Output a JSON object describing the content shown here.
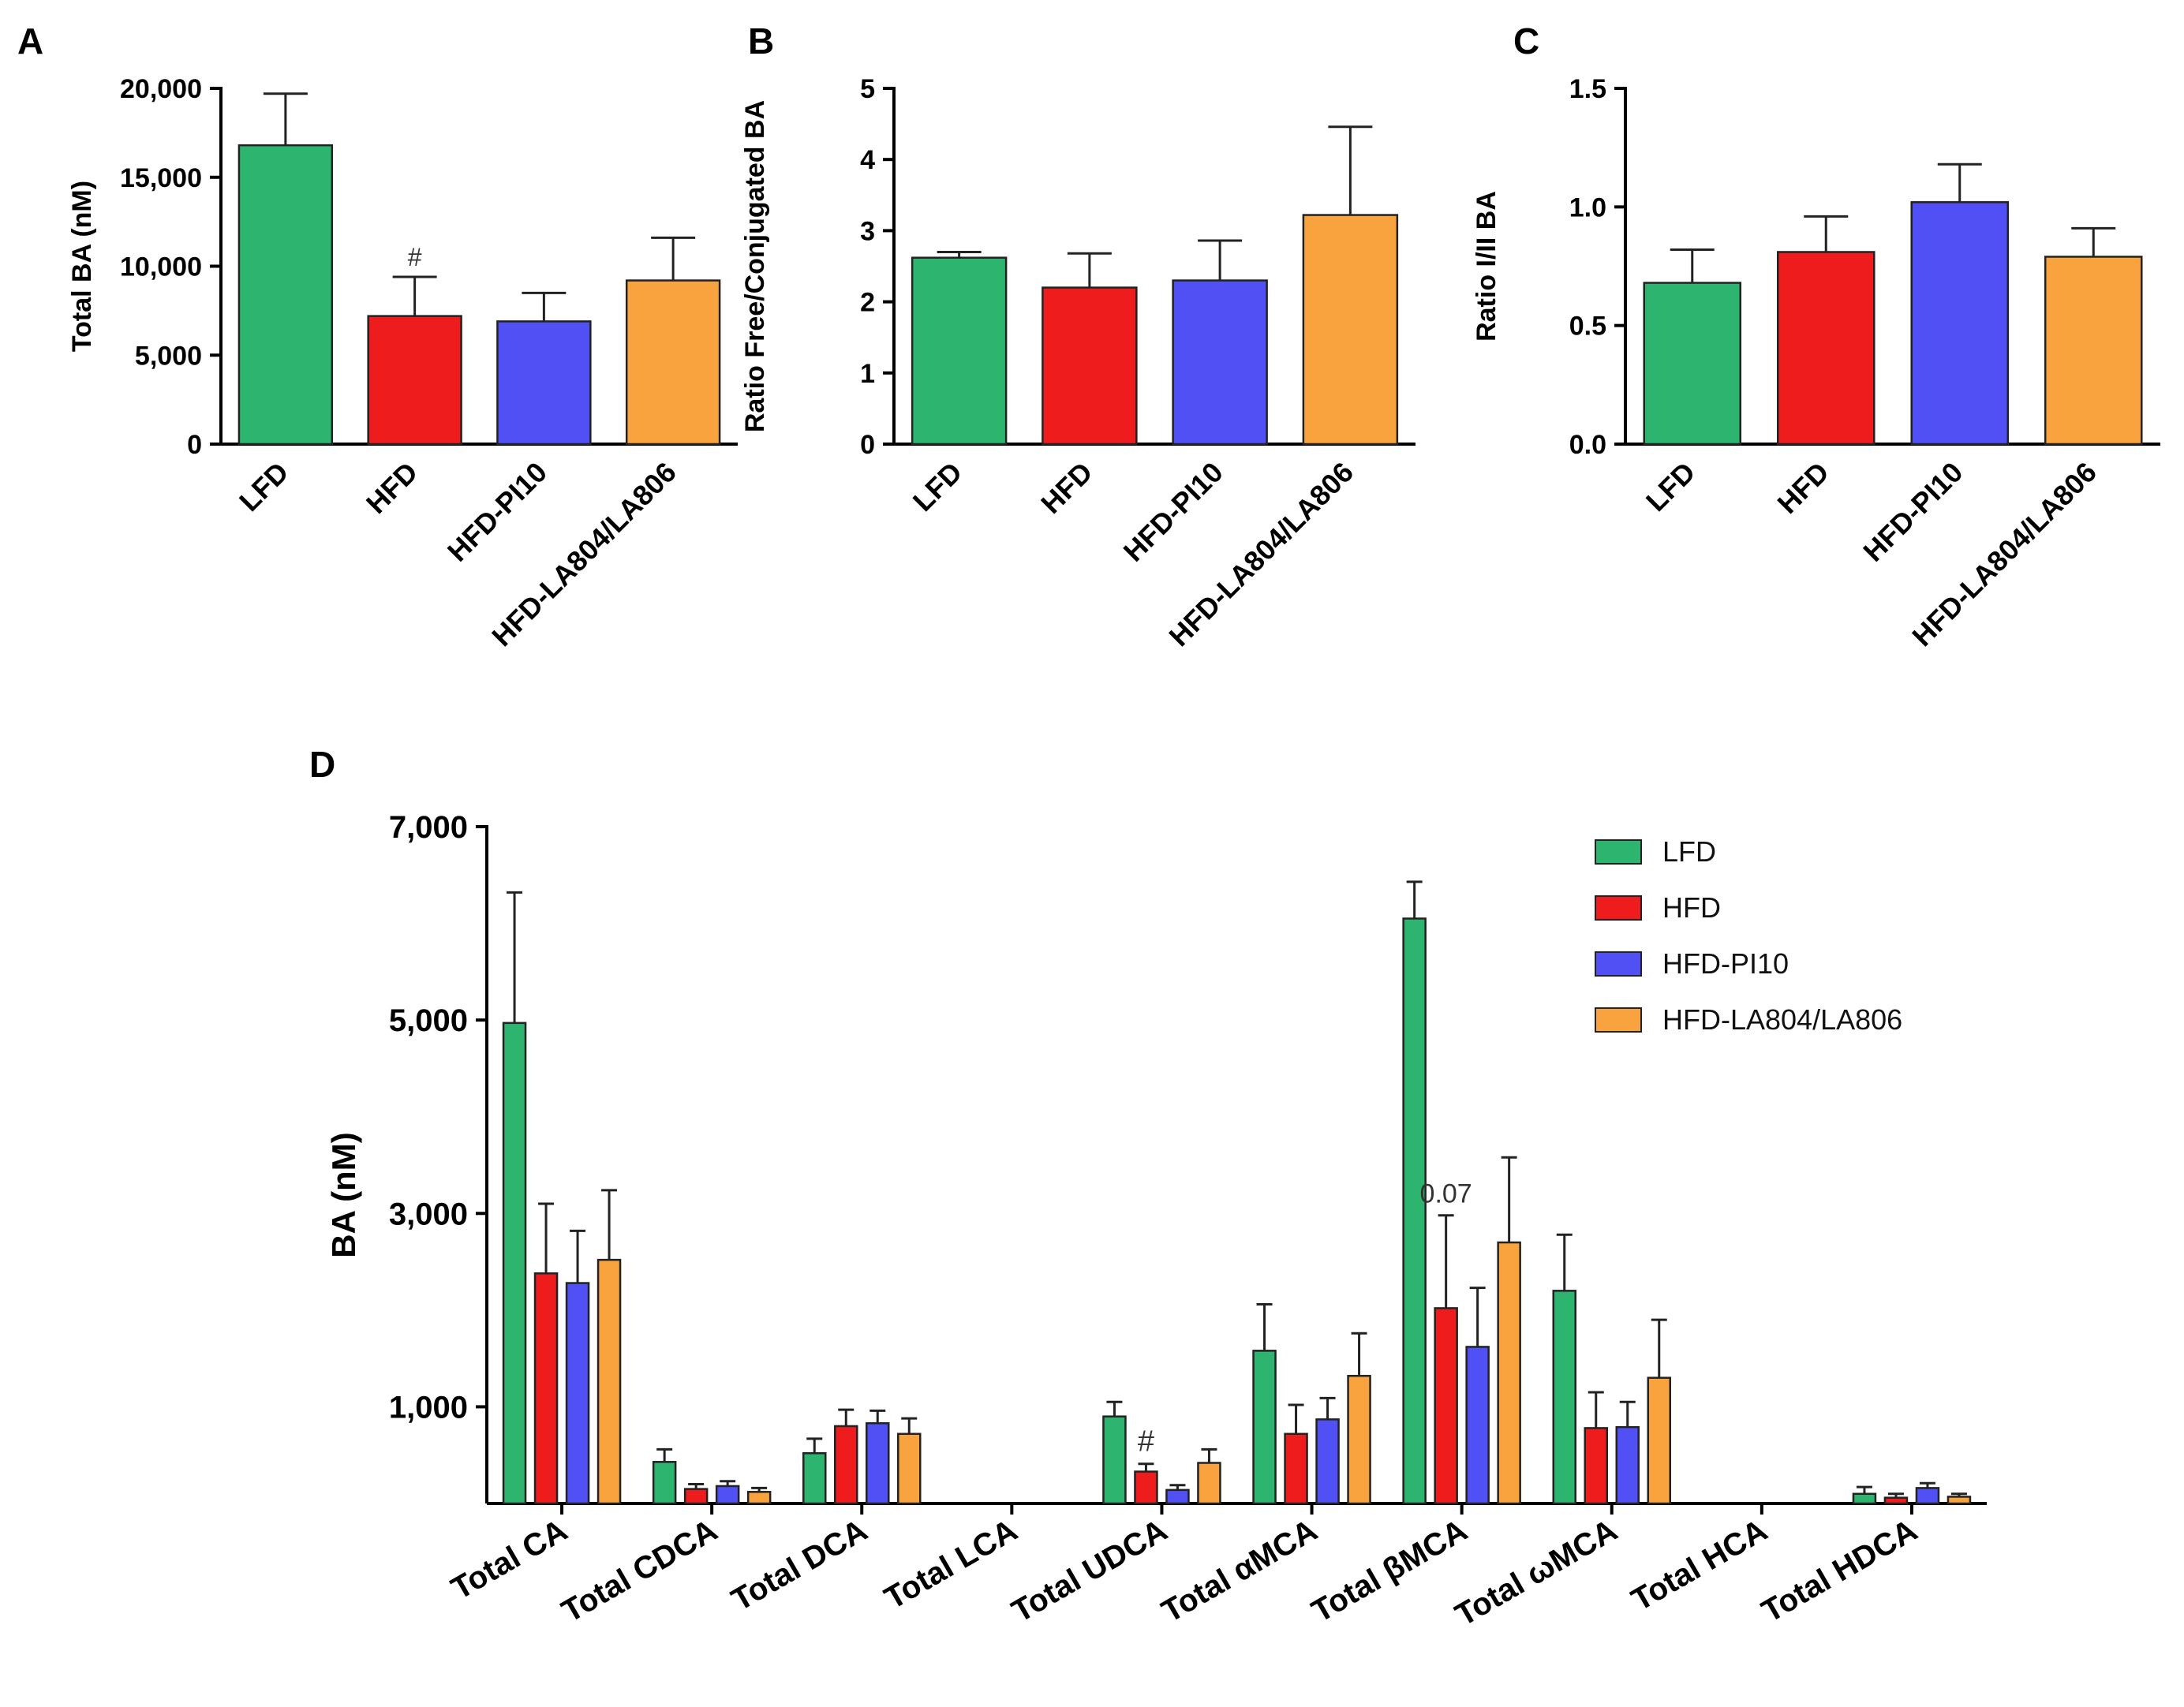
{
  "colors": {
    "LFD": "#2db46e",
    "HFD": "#ee1c1c",
    "HFD-PI10": "#5050f5",
    "HFD-LA804/LA806": "#f9a33f"
  },
  "chart_data": [
    {
      "type": "bar",
      "panel": "A",
      "ylabel": "Total BA (nM)",
      "ylim": [
        0,
        20000
      ],
      "yticks": [
        0,
        5000,
        10000,
        15000,
        20000
      ],
      "ytick_labels": [
        "0",
        "5,000",
        "10,000",
        "15,000",
        "20,000"
      ],
      "categories": [
        "LFD",
        "HFD",
        "HFD-PI10",
        "HFD-LA804/LA806"
      ],
      "values": [
        16800,
        7200,
        6900,
        9200
      ],
      "errors": [
        2900,
        2200,
        1600,
        2400
      ],
      "annotations": [
        {
          "category": "HFD",
          "text": "#"
        }
      ]
    },
    {
      "type": "bar",
      "panel": "B",
      "ylabel": "Ratio Free/Conjugated BA",
      "ylim": [
        0,
        5
      ],
      "yticks": [
        0,
        1,
        2,
        3,
        4,
        5
      ],
      "ytick_labels": [
        "0",
        "1",
        "2",
        "3",
        "4",
        "5"
      ],
      "categories": [
        "LFD",
        "HFD",
        "HFD-PI10",
        "HFD-LA804/LA806"
      ],
      "values": [
        2.62,
        2.2,
        2.3,
        3.22
      ],
      "errors": [
        0.08,
        0.48,
        0.56,
        1.24
      ],
      "annotations": []
    },
    {
      "type": "bar",
      "panel": "C",
      "ylabel": "Ratio I/II BA",
      "ylim": [
        0,
        1.5
      ],
      "yticks": [
        0,
        0.5,
        1.0,
        1.5
      ],
      "ytick_labels": [
        "0.0",
        "0.5",
        "1.0",
        "1.5"
      ],
      "categories": [
        "LFD",
        "HFD",
        "HFD-PI10",
        "HFD-LA804/LA806"
      ],
      "values": [
        0.68,
        0.81,
        1.02,
        0.79
      ],
      "errors": [
        0.14,
        0.15,
        0.16,
        0.12
      ],
      "annotations": []
    },
    {
      "type": "bar",
      "panel": "D",
      "ylabel": "BA (nM)",
      "ylim": [
        0,
        7000
      ],
      "yticks": [
        1000,
        3000,
        5000,
        7000
      ],
      "ytick_labels": [
        "1,000",
        "3,000",
        "5,000",
        "7,000"
      ],
      "categories": [
        "Total CA",
        "Total CDCA",
        "Total DCA",
        "Total LCA",
        "Total UDCA",
        "Total αMCA",
        "Total βMCA",
        "Total ωMCA",
        "Total HCA",
        "Total HDCA"
      ],
      "series": [
        {
          "name": "LFD",
          "values": [
            4970,
            430,
            520,
            0,
            900,
            1580,
            6050,
            2200,
            0,
            100
          ],
          "errors": [
            1350,
            130,
            150,
            0,
            150,
            480,
            380,
            580,
            0,
            70
          ]
        },
        {
          "name": "HFD",
          "values": [
            2380,
            150,
            800,
            0,
            330,
            720,
            2020,
            780,
            0,
            60
          ],
          "errors": [
            720,
            50,
            170,
            0,
            80,
            300,
            960,
            370,
            0,
            40
          ]
        },
        {
          "name": "HFD-PI10",
          "values": [
            2280,
            180,
            830,
            0,
            140,
            870,
            1620,
            790,
            0,
            160
          ],
          "errors": [
            540,
            50,
            130,
            0,
            50,
            220,
            610,
            260,
            0,
            50
          ]
        },
        {
          "name": "HFD-LA804/LA806",
          "values": [
            2520,
            120,
            720,
            0,
            420,
            1320,
            2700,
            1300,
            0,
            70
          ],
          "errors": [
            720,
            40,
            160,
            0,
            140,
            440,
            880,
            600,
            0,
            30
          ]
        }
      ],
      "annotations": [
        {
          "category": "Total UDCA",
          "series": "HFD",
          "text": "#"
        },
        {
          "category": "Total βMCA",
          "series": "HFD",
          "text": "0.07"
        }
      ],
      "legend": {
        "position": "top-right",
        "entries": [
          "LFD",
          "HFD",
          "HFD-PI10",
          "HFD-LA804/LA806"
        ]
      }
    }
  ]
}
